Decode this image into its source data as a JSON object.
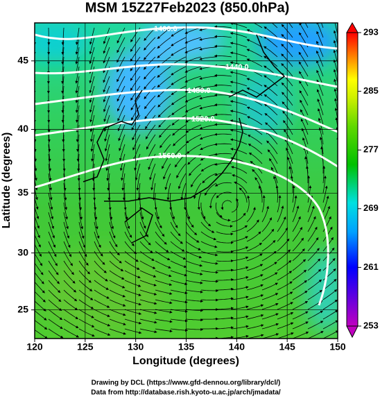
{
  "title": "MSM 15Z27Feb2023 (850.0hPa)",
  "projection": "mercator",
  "x_axis": {
    "label": "Longitude (degrees)",
    "lim": [
      120,
      150
    ],
    "ticks": [
      120,
      125,
      130,
      135,
      140,
      145,
      150
    ]
  },
  "y_axis": {
    "label": "Latitude  (degrees)",
    "lim": [
      22.4,
      47.6
    ],
    "ticks": [
      25,
      30,
      35,
      40,
      45
    ]
  },
  "colorbar": {
    "lim": [
      253,
      293
    ],
    "ticks": [
      253,
      261,
      269,
      277,
      285,
      293
    ]
  },
  "contour_labels": [
    "1400.0",
    "1440.0",
    "1480.0",
    "1520.0",
    "1560.0"
  ],
  "footer": [
    "Drawing by DCL (https://www.gfd-dennou.org/library/dcl/)",
    "Data from http://database.rish.kyoto-u.ac.jp/arch/jmadata/"
  ]
}
